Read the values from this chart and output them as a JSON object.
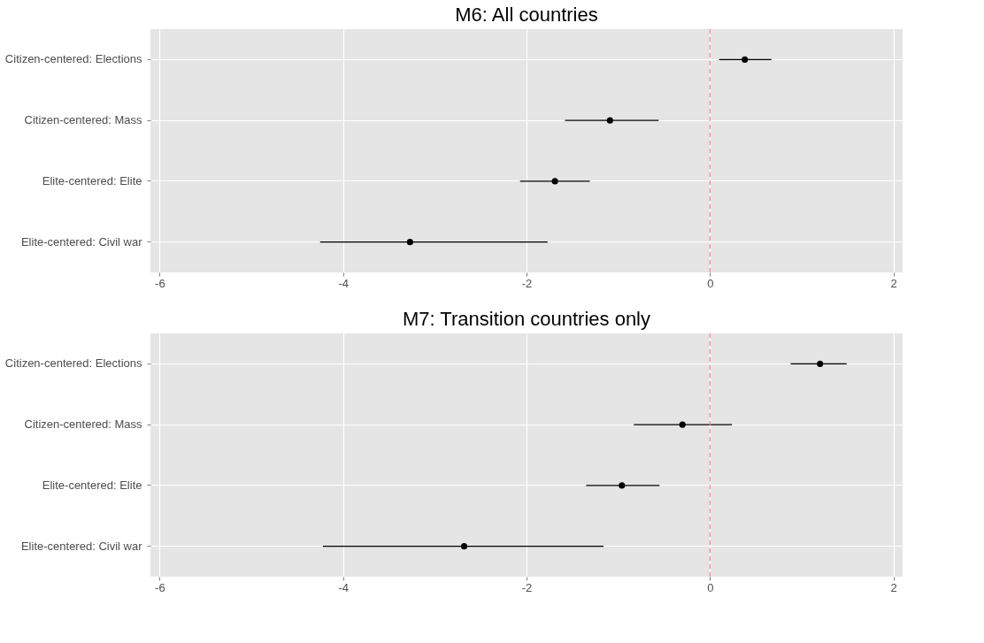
{
  "chart_data": [
    {
      "type": "scatter",
      "title": "M6: All countries",
      "orientation": "horizontal",
      "marker": "circle",
      "grid": true,
      "categories": [
        "Citizen-centered: Elections",
        "Citizen-centered: Mass",
        "Elite-centered: Elite",
        "Elite-centered: Civil war"
      ],
      "series": [
        {
          "color": "#000000",
          "values": [
            0.38,
            -1.09,
            -1.69,
            -3.27
          ],
          "errors": [
            [
              0.1,
              0.67
            ],
            [
              -1.58,
              -0.56
            ],
            [
              -2.07,
              -1.31
            ],
            [
              -4.25,
              -1.77
            ]
          ]
        }
      ],
      "xlim": [
        -6.1,
        2.1
      ],
      "xticks": [
        -6,
        -4,
        -2,
        0,
        2
      ],
      "ref_lines": [
        {
          "axis": "x",
          "value": 0,
          "color": "#f8766d",
          "line_style": "dashed"
        }
      ]
    },
    {
      "type": "scatter",
      "title": "M7: Transition countries only",
      "orientation": "horizontal",
      "marker": "circle",
      "grid": true,
      "categories": [
        "Citizen-centered: Elections",
        "Citizen-centered: Mass",
        "Elite-centered: Elite",
        "Elite-centered: Civil war"
      ],
      "series": [
        {
          "color": "#000000",
          "values": [
            1.2,
            -0.3,
            -0.96,
            -2.68
          ],
          "errors": [
            [
              0.88,
              1.49
            ],
            [
              -0.83,
              0.24
            ],
            [
              -1.35,
              -0.55
            ],
            [
              -4.22,
              -1.16
            ]
          ]
        }
      ],
      "xlim": [
        -6.1,
        2.1
      ],
      "xticks": [
        -6,
        -4,
        -2,
        0,
        2
      ],
      "ref_lines": [
        {
          "axis": "x",
          "value": 0,
          "color": "#f8766d",
          "line_style": "dashed"
        }
      ]
    }
  ]
}
